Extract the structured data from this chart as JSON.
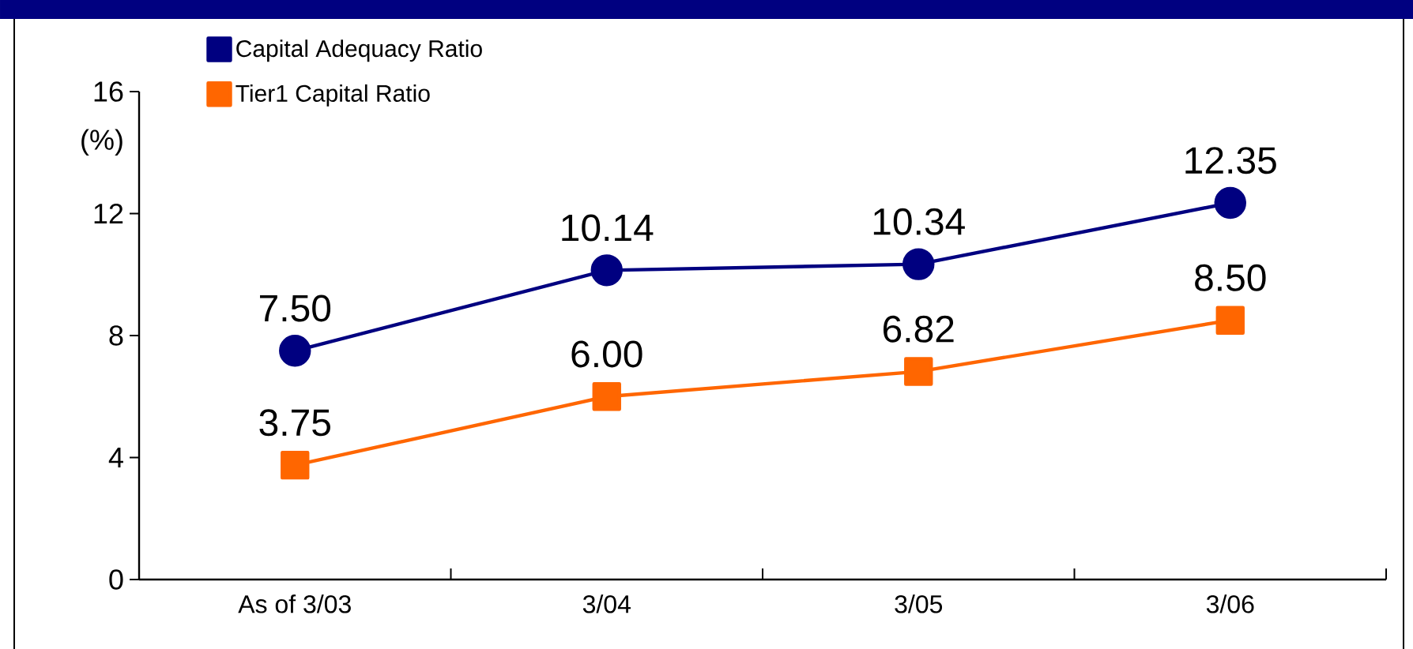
{
  "chart_data": {
    "type": "line",
    "categories": [
      "As of 3/03",
      "3/04",
      "3/05",
      "3/06"
    ],
    "series": [
      {
        "name": "Capital Adequacy Ratio",
        "color": "#000080",
        "marker": "circle",
        "values": [
          7.5,
          10.14,
          10.34,
          12.35
        ],
        "value_labels": [
          "7.50",
          "10.14",
          "10.34",
          "12.35"
        ]
      },
      {
        "name": "Tier1 Capital Ratio",
        "color": "#ff6600",
        "marker": "square",
        "values": [
          3.75,
          6.0,
          6.82,
          8.5
        ],
        "value_labels": [
          "3.75",
          "6.00",
          "6.82",
          "8.50"
        ]
      }
    ],
    "ylabel": "(%)",
    "ylim": [
      0,
      16
    ],
    "yticks": [
      0,
      4,
      8,
      12,
      16
    ],
    "legend": "top left",
    "grid": false
  }
}
